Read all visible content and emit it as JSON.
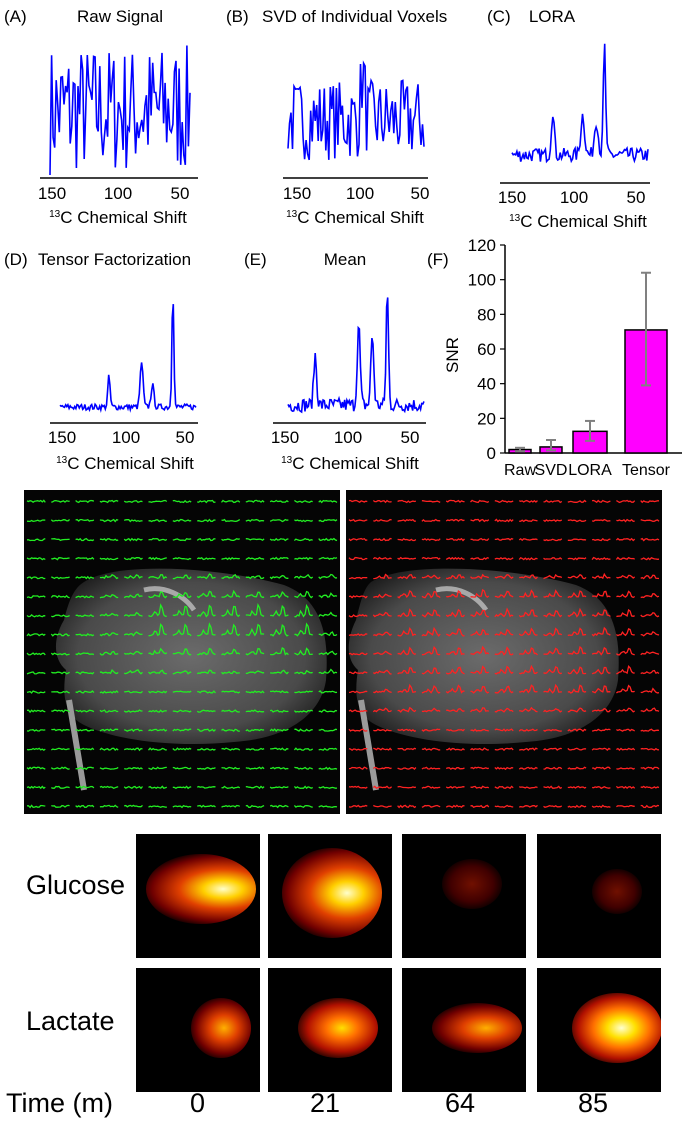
{
  "panels": [
    {
      "letter": "(A)",
      "title": "Raw Signal",
      "xlabel_sup": "13",
      "xlabel": "C Chemical Shift",
      "ticks": [
        "150",
        "100",
        "50"
      ]
    },
    {
      "letter": "(B)",
      "title": "SVD of Individual Voxels",
      "xlabel_sup": "13",
      "xlabel": "C Chemical Shift",
      "ticks": [
        "150",
        "100",
        "50"
      ]
    },
    {
      "letter": "(C)",
      "title": "LORA",
      "xlabel_sup": "13",
      "xlabel": "C Chemical Shift",
      "ticks": [
        "150",
        "100",
        "50"
      ]
    },
    {
      "letter": "(D)",
      "title": "Tensor Factorization",
      "xlabel_sup": "13",
      "xlabel": "C Chemical Shift",
      "ticks": [
        "150",
        "100",
        "50"
      ]
    },
    {
      "letter": "(E)",
      "title": "Mean",
      "xlabel_sup": "13",
      "xlabel": "C Chemical Shift",
      "ticks": [
        "150",
        "100",
        "50"
      ]
    }
  ],
  "chart_data": {
    "type": "bar",
    "panel_letter": "(F)",
    "categories": [
      "Raw",
      "SVD",
      "LORA",
      "Tensor"
    ],
    "values": [
      2,
      3.5,
      12.5,
      71
    ],
    "error_low": [
      1,
      1.5,
      7,
      39
    ],
    "error_high": [
      3,
      7.5,
      18.5,
      104
    ],
    "ylabel": "SNR",
    "yticks": [
      "0",
      "20",
      "40",
      "60",
      "80",
      "100",
      "120"
    ],
    "ylim": [
      0,
      120
    ],
    "bar_color": "#ff00ff",
    "error_color": "#808080"
  },
  "spectrum_color": "#0000ff",
  "grid_colors": {
    "left": "#22ee22",
    "right": "#ff2222"
  },
  "metabolites": [
    "Glucose",
    "Lactate"
  ],
  "time_axis": {
    "label": "Time (m)",
    "values": [
      "0",
      "21",
      "64",
      "85"
    ]
  }
}
